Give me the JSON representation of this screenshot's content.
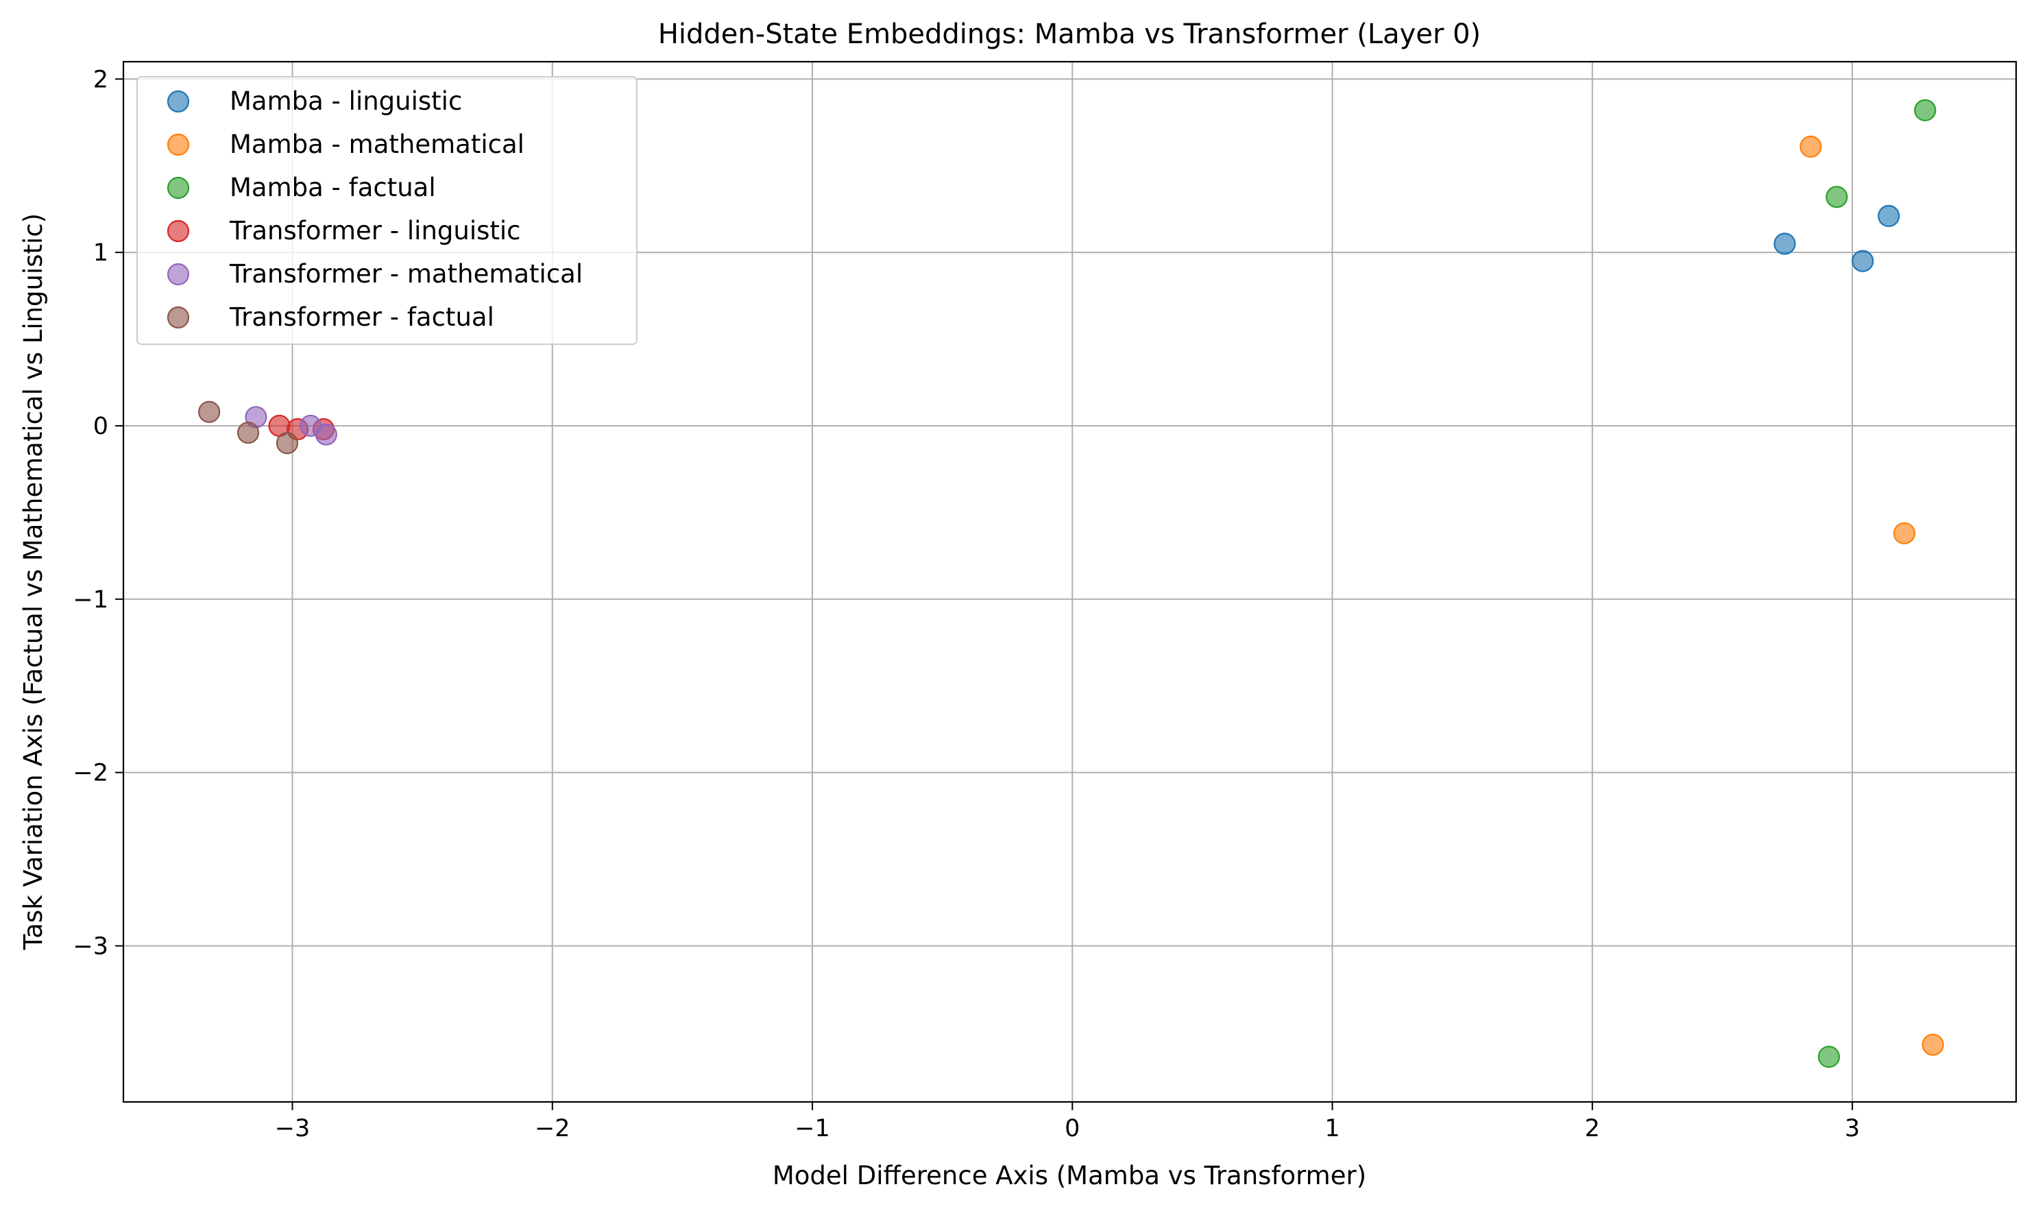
{
  "chart_data": {
    "type": "scatter",
    "title": "Hidden-State Embeddings: Mamba vs Transformer (Layer 0)",
    "xlabel": "Model Difference Axis (Mamba vs Transformer)",
    "ylabel": "Task Variation Axis (Factual vs Mathematical vs Linguistic)",
    "xlim": [
      -3.65,
      3.63
    ],
    "ylim": [
      -3.9,
      2.1
    ],
    "x_ticks": [
      -3,
      -2,
      -1,
      0,
      1,
      2,
      3
    ],
    "y_ticks": [
      -3,
      -2,
      -1,
      0,
      1,
      2
    ],
    "x_tick_labels": [
      "−3",
      "−2",
      "−1",
      "0",
      "1",
      "2",
      "3"
    ],
    "y_tick_labels": [
      "−3",
      "−2",
      "−1",
      "0",
      "1",
      "2"
    ],
    "grid": true,
    "legend_position": "upper-left",
    "series": [
      {
        "name": "Mamba - linguistic",
        "color": "#1f77b4",
        "points": [
          [
            2.74,
            1.05
          ],
          [
            3.04,
            0.95
          ],
          [
            3.14,
            1.21
          ]
        ]
      },
      {
        "name": "Mamba - mathematical",
        "color": "#ff7f0e",
        "points": [
          [
            2.84,
            1.61
          ],
          [
            3.2,
            -0.62
          ],
          [
            3.31,
            -3.57
          ]
        ]
      },
      {
        "name": "Mamba - factual",
        "color": "#2ca02c",
        "points": [
          [
            3.28,
            1.82
          ],
          [
            2.94,
            1.32
          ],
          [
            2.91,
            -3.64
          ]
        ]
      },
      {
        "name": "Transformer - linguistic",
        "color": "#d62728",
        "points": [
          [
            -3.05,
            0.0
          ],
          [
            -2.98,
            -0.02
          ],
          [
            -2.88,
            -0.02
          ]
        ]
      },
      {
        "name": "Transformer - mathematical",
        "color": "#9467bd",
        "points": [
          [
            -3.14,
            0.05
          ],
          [
            -2.93,
            0.0
          ],
          [
            -2.87,
            -0.05
          ]
        ]
      },
      {
        "name": "Transformer - factual",
        "color": "#8c564b",
        "points": [
          [
            -3.32,
            0.08
          ],
          [
            -3.17,
            -0.04
          ],
          [
            -3.02,
            -0.1
          ]
        ]
      }
    ]
  }
}
